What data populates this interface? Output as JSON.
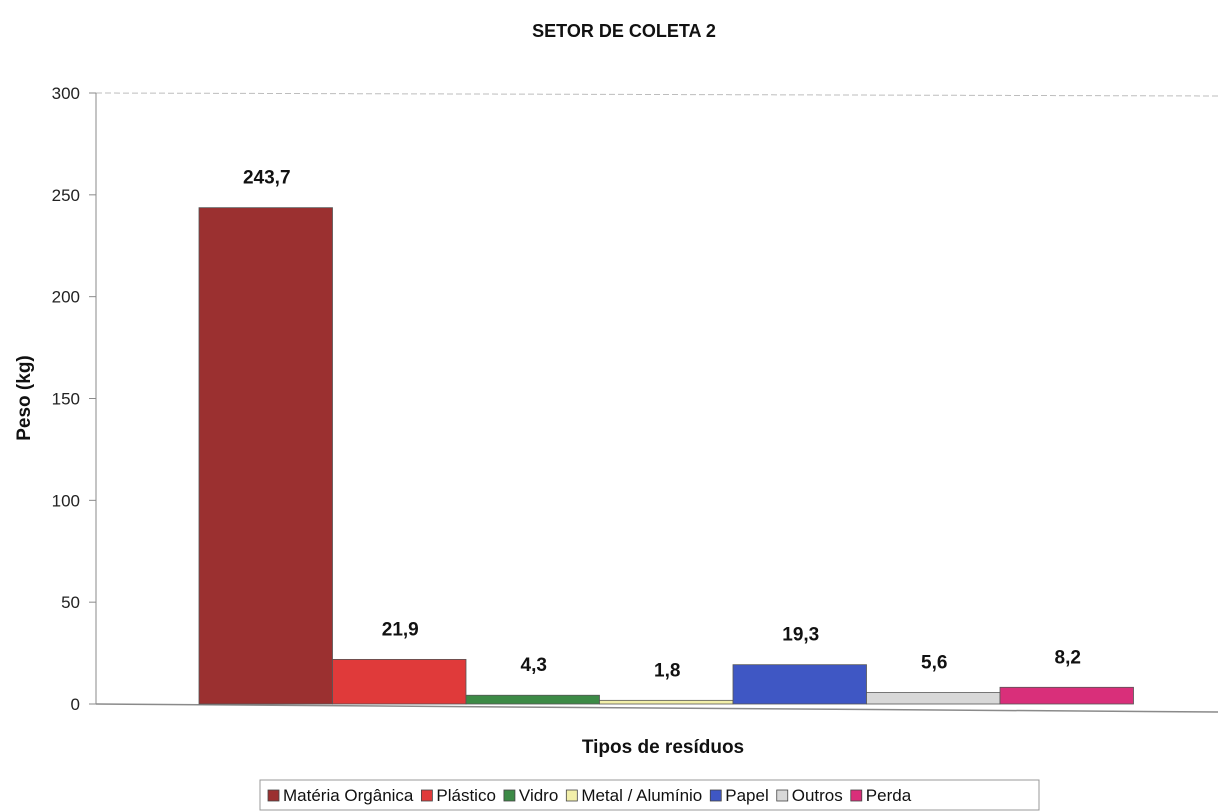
{
  "chart_data": {
    "type": "bar",
    "title": "SETOR DE COLETA 2",
    "xlabel": "Tipos de resíduos",
    "ylabel": "Peso (kg)",
    "ylim": [
      0,
      300
    ],
    "yticks": [
      "0",
      "50",
      "100",
      "150",
      "200",
      "250",
      "300"
    ],
    "grid": false,
    "legend_position": "bottom",
    "series": [
      {
        "name": "Matéria Orgânica",
        "value": 243.7,
        "label": "243,7",
        "color": "#9b3030"
      },
      {
        "name": "Plástico",
        "value": 21.9,
        "label": "21,9",
        "color": "#e03a3a"
      },
      {
        "name": "Vidro",
        "value": 4.3,
        "label": "4,3",
        "color": "#3c8a46"
      },
      {
        "name": "Metal / Alumínio",
        "value": 1.8,
        "label": "1,8",
        "color": "#f2efaa"
      },
      {
        "name": "Papel",
        "value": 19.3,
        "label": "19,3",
        "color": "#3f57c4"
      },
      {
        "name": "Outros",
        "value": 5.6,
        "label": "5,6",
        "color": "#d8d8d8"
      },
      {
        "name": "Perda",
        "value": 8.2,
        "label": "8,2",
        "color": "#d92f7a"
      }
    ]
  }
}
